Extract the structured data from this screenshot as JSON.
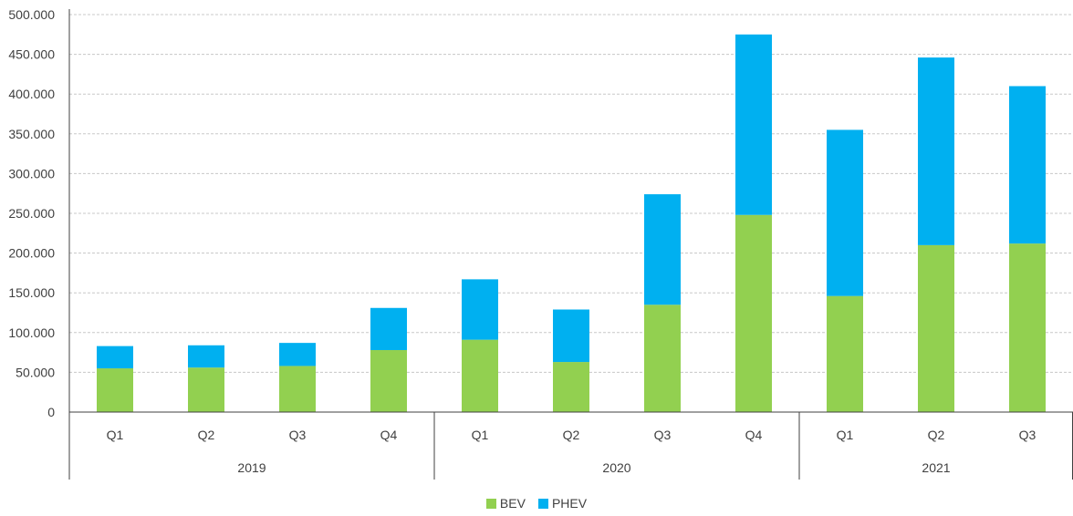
{
  "chart_data": {
    "type": "bar",
    "stacked": true,
    "title": "",
    "xlabel": "",
    "ylabel": "",
    "ylim": [
      0,
      500000
    ],
    "yticks": [
      0,
      50000,
      100000,
      150000,
      200000,
      250000,
      300000,
      350000,
      400000,
      450000,
      500000
    ],
    "ytick_labels": [
      "0",
      "50.000",
      "100.000",
      "150.000",
      "200.000",
      "250.000",
      "300.000",
      "350.000",
      "400.000",
      "450.000",
      "500.000"
    ],
    "grid": "horizontal dashed",
    "legend_position": "bottom-center",
    "categories": [
      "Q1",
      "Q2",
      "Q3",
      "Q4",
      "Q1",
      "Q2",
      "Q3",
      "Q4",
      "Q1",
      "Q2",
      "Q3"
    ],
    "groups": [
      {
        "label": "2019",
        "count": 4
      },
      {
        "label": "2020",
        "count": 4
      },
      {
        "label": "2021",
        "count": 3
      }
    ],
    "series": [
      {
        "name": "BEV",
        "color": "#92D050",
        "values": [
          55000,
          56000,
          58000,
          78000,
          91000,
          63000,
          135000,
          248000,
          146000,
          210000,
          212000
        ]
      },
      {
        "name": "PHEV",
        "color": "#00B0F0",
        "values": [
          28000,
          28000,
          29000,
          53000,
          76000,
          66000,
          139000,
          227000,
          209000,
          236000,
          198000
        ]
      }
    ]
  }
}
